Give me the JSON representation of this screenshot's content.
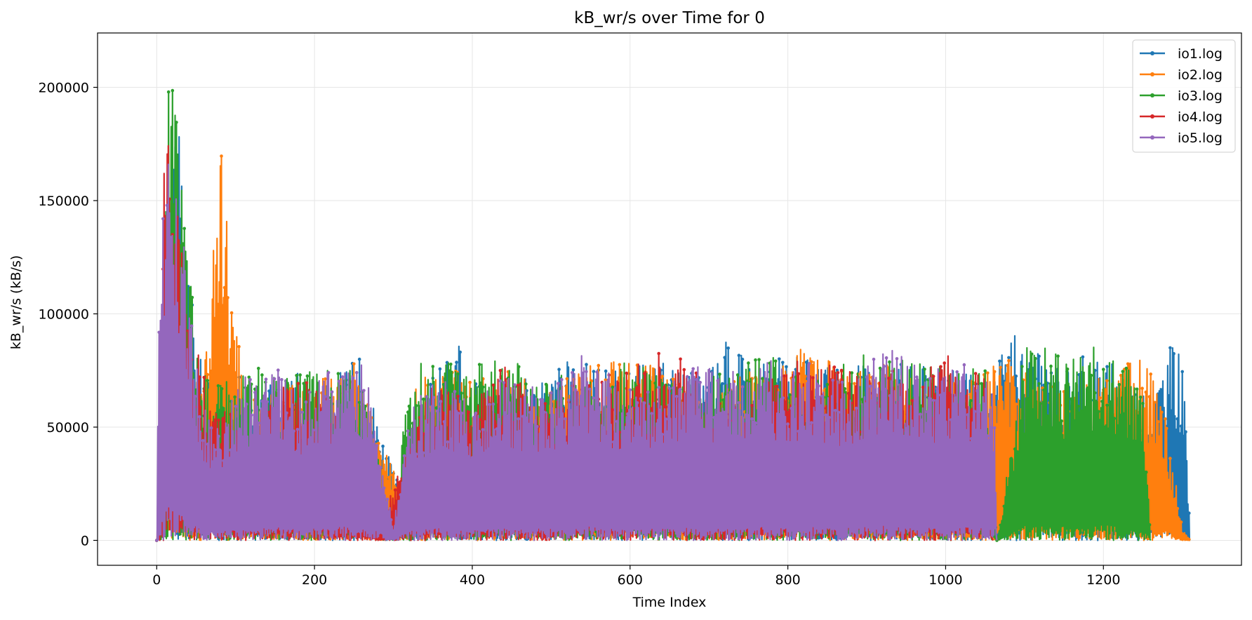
{
  "chart_data": {
    "type": "line",
    "title": "kB_wr/s over Time for 0",
    "xlabel": "Time Index",
    "ylabel": "kB_wr/s (kB/s)",
    "xlim": [
      -75,
      1375
    ],
    "ylim": [
      -11000,
      224000
    ],
    "x_ticks": [
      0,
      200,
      400,
      600,
      800,
      1000,
      1200
    ],
    "y_ticks": [
      0,
      50000,
      100000,
      150000,
      200000
    ],
    "grid": true,
    "legend_position": "top-right",
    "series": [
      {
        "name": "io1.log",
        "color": "#1f77b4",
        "points": [
          [
            0,
            0
          ],
          [
            5,
            40000
          ],
          [
            10,
            150000
          ],
          [
            15,
            200000
          ],
          [
            20,
            210000
          ],
          [
            25,
            195000
          ],
          [
            30,
            170000
          ],
          [
            35,
            150000
          ],
          [
            40,
            130000
          ],
          [
            45,
            110000
          ],
          [
            50,
            90000
          ],
          [
            60,
            75000
          ],
          [
            80,
            60000
          ],
          [
            100,
            75000
          ],
          [
            120,
            65000
          ],
          [
            150,
            70000
          ],
          [
            180,
            80000
          ],
          [
            200,
            72000
          ],
          [
            230,
            75000
          ],
          [
            260,
            82000
          ],
          [
            300,
            30000
          ],
          [
            320,
            20000
          ],
          [
            350,
            75000
          ],
          [
            380,
            87000
          ],
          [
            400,
            80000
          ],
          [
            430,
            55000
          ],
          [
            460,
            75000
          ],
          [
            490,
            70000
          ],
          [
            510,
            80000
          ],
          [
            540,
            78000
          ],
          [
            560,
            80000
          ],
          [
            580,
            75000
          ],
          [
            600,
            80000
          ],
          [
            630,
            78000
          ],
          [
            660,
            80000
          ],
          [
            690,
            72000
          ],
          [
            720,
            89000
          ],
          [
            750,
            82000
          ],
          [
            780,
            80000
          ],
          [
            810,
            82000
          ],
          [
            840,
            78000
          ],
          [
            870,
            75000
          ],
          [
            900,
            80000
          ],
          [
            930,
            82000
          ],
          [
            960,
            78000
          ],
          [
            990,
            80000
          ],
          [
            1020,
            75000
          ],
          [
            1050,
            70000
          ],
          [
            1070,
            80000
          ],
          [
            1080,
            94000
          ],
          [
            1100,
            86000
          ],
          [
            1120,
            83000
          ],
          [
            1140,
            80000
          ],
          [
            1160,
            78000
          ],
          [
            1180,
            85000
          ],
          [
            1200,
            82000
          ],
          [
            1220,
            75000
          ],
          [
            1240,
            70000
          ],
          [
            1260,
            60000
          ],
          [
            1280,
            87000
          ],
          [
            1300,
            86000
          ],
          [
            1310,
            0
          ]
        ]
      },
      {
        "name": "io2.log",
        "color": "#ff7f0e",
        "points": [
          [
            0,
            0
          ],
          [
            5,
            58000
          ],
          [
            10,
            120000
          ],
          [
            20,
            140000
          ],
          [
            30,
            110000
          ],
          [
            40,
            90000
          ],
          [
            60,
            70000
          ],
          [
            78,
            186000
          ],
          [
            82,
            171000
          ],
          [
            86,
            155000
          ],
          [
            90,
            135000
          ],
          [
            95,
            110000
          ],
          [
            100,
            95000
          ],
          [
            110,
            75000
          ],
          [
            130,
            70000
          ],
          [
            160,
            72000
          ],
          [
            200,
            70000
          ],
          [
            250,
            78000
          ],
          [
            290,
            40000
          ],
          [
            305,
            30000
          ],
          [
            330,
            70000
          ],
          [
            370,
            78000
          ],
          [
            400,
            70000
          ],
          [
            450,
            75000
          ],
          [
            490,
            70000
          ],
          [
            520,
            75000
          ],
          [
            560,
            78000
          ],
          [
            600,
            80000
          ],
          [
            650,
            75000
          ],
          [
            700,
            60000
          ],
          [
            750,
            78000
          ],
          [
            800,
            80000
          ],
          [
            825,
            87000
          ],
          [
            830,
            90000
          ],
          [
            850,
            80000
          ],
          [
            880,
            75000
          ],
          [
            920,
            78000
          ],
          [
            960,
            75000
          ],
          [
            1000,
            72000
          ],
          [
            1040,
            75000
          ],
          [
            1065,
            81000
          ],
          [
            1080,
            80000
          ],
          [
            1100,
            75000
          ],
          [
            1150,
            70000
          ],
          [
            1200,
            72000
          ],
          [
            1240,
            82000
          ],
          [
            1260,
            75000
          ],
          [
            1280,
            55000
          ],
          [
            1300,
            5000
          ],
          [
            1310,
            0
          ]
        ]
      },
      {
        "name": "io3.log",
        "color": "#2ca02c",
        "points": [
          [
            0,
            0
          ],
          [
            5,
            15000
          ],
          [
            10,
            130000
          ],
          [
            15,
            205000
          ],
          [
            20,
            210000
          ],
          [
            25,
            190000
          ],
          [
            30,
            175000
          ],
          [
            35,
            160000
          ],
          [
            40,
            135000
          ],
          [
            45,
            115000
          ],
          [
            50,
            90000
          ],
          [
            60,
            75000
          ],
          [
            90,
            70000
          ],
          [
            120,
            80000
          ],
          [
            150,
            72000
          ],
          [
            200,
            75000
          ],
          [
            230,
            76000
          ],
          [
            260,
            75000
          ],
          [
            300,
            5000
          ],
          [
            320,
            78000
          ],
          [
            350,
            80000
          ],
          [
            400,
            78000
          ],
          [
            450,
            83000
          ],
          [
            480,
            72000
          ],
          [
            510,
            76000
          ],
          [
            560,
            70000
          ],
          [
            600,
            81000
          ],
          [
            650,
            70000
          ],
          [
            700,
            72000
          ],
          [
            750,
            80000
          ],
          [
            780,
            83000
          ],
          [
            810,
            75000
          ],
          [
            850,
            72000
          ],
          [
            890,
            83000
          ],
          [
            920,
            80000
          ],
          [
            960,
            83000
          ],
          [
            1000,
            80000
          ],
          [
            1050,
            75000
          ],
          [
            1065,
            0
          ],
          [
            1100,
            85000
          ],
          [
            1120,
            87000
          ],
          [
            1150,
            80000
          ],
          [
            1180,
            85000
          ],
          [
            1200,
            89000
          ],
          [
            1220,
            80000
          ],
          [
            1250,
            72000
          ],
          [
            1260,
            0
          ]
        ]
      },
      {
        "name": "io4.log",
        "color": "#d62728",
        "points": [
          [
            0,
            0
          ],
          [
            5,
            100000
          ],
          [
            8,
            157000
          ],
          [
            12,
            193000
          ],
          [
            16,
            195000
          ],
          [
            20,
            175000
          ],
          [
            25,
            160000
          ],
          [
            30,
            145000
          ],
          [
            35,
            120000
          ],
          [
            40,
            100000
          ],
          [
            50,
            85000
          ],
          [
            60,
            75000
          ],
          [
            80,
            60000
          ],
          [
            100,
            55000
          ],
          [
            120,
            50000
          ],
          [
            150,
            65000
          ],
          [
            170,
            72000
          ],
          [
            190,
            70000
          ],
          [
            210,
            65000
          ],
          [
            230,
            60000
          ],
          [
            280,
            5000
          ],
          [
            350,
            70000
          ],
          [
            400,
            60000
          ],
          [
            440,
            82000
          ],
          [
            470,
            65000
          ],
          [
            500,
            60000
          ],
          [
            530,
            70000
          ],
          [
            560,
            72000
          ],
          [
            600,
            75000
          ],
          [
            650,
            88000
          ],
          [
            670,
            85000
          ],
          [
            690,
            70000
          ],
          [
            700,
            60000
          ],
          [
            750,
            65000
          ],
          [
            800,
            80000
          ],
          [
            850,
            78000
          ],
          [
            880,
            75000
          ],
          [
            910,
            70000
          ],
          [
            940,
            78000
          ],
          [
            980,
            76000
          ],
          [
            1000,
            84000
          ],
          [
            1020,
            76000
          ],
          [
            1050,
            75000
          ],
          [
            1060,
            0
          ]
        ]
      },
      {
        "name": "io5.log",
        "color": "#9467bd",
        "points": [
          [
            0,
            0
          ],
          [
            3,
            104000
          ],
          [
            8,
            147000
          ],
          [
            13,
            213000
          ],
          [
            18,
            200000
          ],
          [
            23,
            175000
          ],
          [
            28,
            150000
          ],
          [
            33,
            135000
          ],
          [
            40,
            110000
          ],
          [
            50,
            80000
          ],
          [
            60,
            60000
          ],
          [
            80,
            50000
          ],
          [
            100,
            70000
          ],
          [
            120,
            75000
          ],
          [
            140,
            84000
          ],
          [
            160,
            72000
          ],
          [
            180,
            65000
          ],
          [
            200,
            70000
          ],
          [
            240,
            82000
          ],
          [
            270,
            75000
          ],
          [
            300,
            5000
          ],
          [
            320,
            60000
          ],
          [
            360,
            72000
          ],
          [
            400,
            60000
          ],
          [
            440,
            75000
          ],
          [
            460,
            70000
          ],
          [
            500,
            68000
          ],
          [
            540,
            83000
          ],
          [
            570,
            75000
          ],
          [
            600,
            68000
          ],
          [
            650,
            70000
          ],
          [
            680,
            78000
          ],
          [
            720,
            75000
          ],
          [
            750,
            77000
          ],
          [
            780,
            80000
          ],
          [
            800,
            75000
          ],
          [
            830,
            82000
          ],
          [
            860,
            70000
          ],
          [
            900,
            80000
          ],
          [
            925,
            86000
          ],
          [
            950,
            80000
          ],
          [
            980,
            75000
          ],
          [
            1010,
            80000
          ],
          [
            1040,
            75000
          ],
          [
            1062,
            70000
          ],
          [
            1065,
            0
          ]
        ]
      }
    ]
  }
}
